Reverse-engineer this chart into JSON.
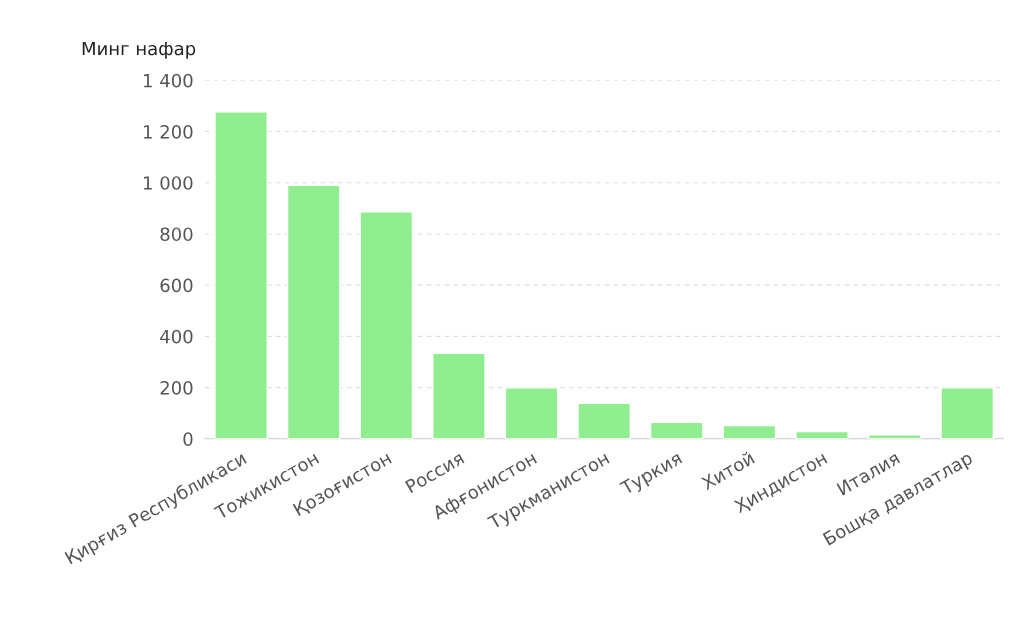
{
  "chart_data": {
    "type": "bar",
    "ylabel": "Минг нафар",
    "categories": [
      "Қирғиз Республикаси",
      "Тожикистон",
      "Қозоғистон",
      "Россия",
      "Афғонистон",
      "Туркманистон",
      "Туркия",
      "Хитой",
      "Ҳиндистон",
      "Италия",
      "Бошқа давлатлар"
    ],
    "values": [
      1277,
      990,
      887,
      334,
      199,
      139,
      64,
      52,
      28,
      16,
      199
    ],
    "color": "#90ee90",
    "ylim": [
      0,
      1400
    ],
    "yticks": [
      0,
      200,
      400,
      600,
      800,
      {
        "value": 1000,
        "label": "1 000"
      },
      {
        "value": 1200,
        "label": "1 200"
      },
      {
        "value": 1400,
        "label": "1 400"
      }
    ],
    "grid": "y",
    "legend": false
  }
}
